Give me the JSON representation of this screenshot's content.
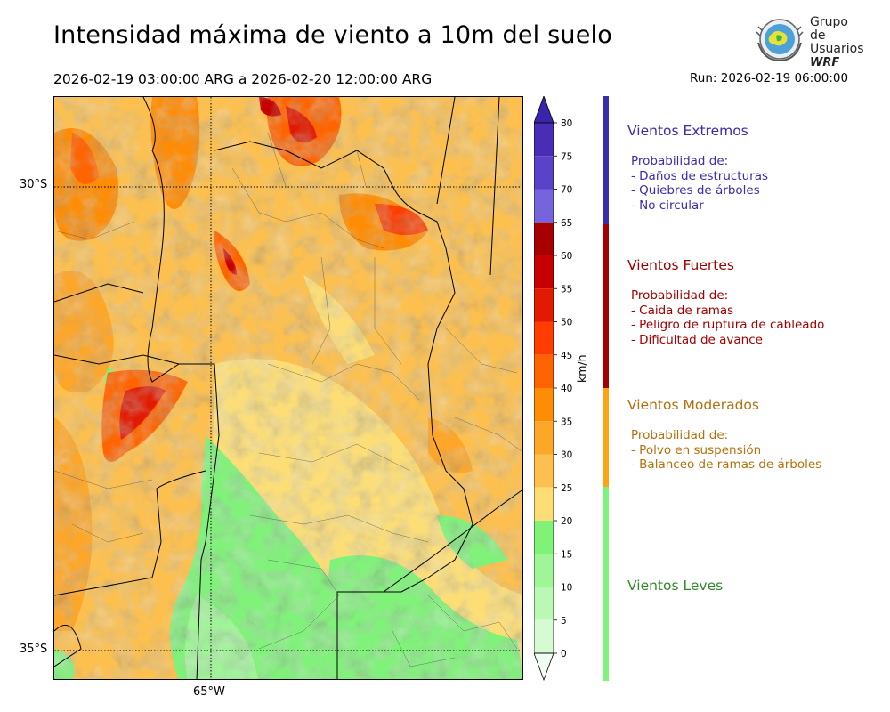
{
  "header": {
    "title": "Intensidad máxima de viento a 10m del suelo",
    "period": "2026-02-19 03:00:00 ARG  a  2026-02-20 12:00:00 ARG",
    "run": "Run: 2026-02-19 06:00:00"
  },
  "logo": {
    "line1": "Grupo de",
    "line2": "Usuarios",
    "line3": "WRF"
  },
  "map": {
    "lat_labels": [
      "30°S",
      "35°S"
    ],
    "lon_labels": [
      "65°W"
    ]
  },
  "colorbar": {
    "unit": "km/h",
    "ticks": [
      "0",
      "5",
      "10",
      "15",
      "20",
      "25",
      "30",
      "35",
      "40",
      "45",
      "50",
      "55",
      "60",
      "65",
      "70",
      "75",
      "80"
    ],
    "colors": [
      "#effef0",
      "#d6fbd2",
      "#bcf8b5",
      "#9ff597",
      "#80f27a",
      "#fdde76",
      "#fdc04e",
      "#fda628",
      "#fe8c05",
      "#fe6502",
      "#ff3d00",
      "#e11a00",
      "#c60000",
      "#a60000",
      "#7664dc",
      "#5a43c8",
      "#4a2db7"
    ],
    "over_color": "#3b24ac"
  },
  "categories": [
    {
      "title": "Vientos Extremos",
      "desc": [
        "Probabilidad de:",
        "- Daños de estructuras",
        "- Quiebres de árboles",
        "- No circular"
      ],
      "color": "#3b2bb0",
      "bar_color": "#3a2eb0"
    },
    {
      "title": "Vientos Fuertes",
      "desc": [
        "Probabilidad de:",
        "- Caida de ramas",
        "- Peligro de ruptura de cableado",
        "- Dificultad de avance"
      ],
      "color": "#a10000",
      "bar_color": "#a50000"
    },
    {
      "title": "Vientos Moderados",
      "desc": [
        "Probabilidad de:",
        "- Polvo en suspensión",
        "- Balanceo de ramas de árboles"
      ],
      "color": "#b3710d",
      "bar_color": "#fea313"
    },
    {
      "title": "Vientos Leves",
      "desc": [],
      "color": "#2f8a2a",
      "bar_color": "#7ff27b"
    }
  ]
}
